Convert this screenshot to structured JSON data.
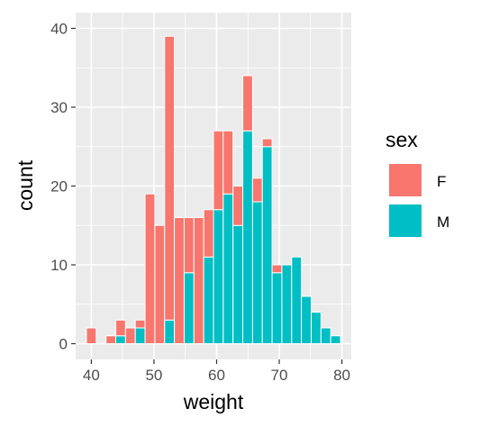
{
  "chart_data": {
    "type": "bar",
    "stacked": true,
    "xlabel": "weight",
    "ylabel": "count",
    "xlim": [
      37.5,
      81.5
    ],
    "ylim": [
      -2,
      42
    ],
    "xticks": [
      40,
      50,
      60,
      70,
      80
    ],
    "yticks": [
      0,
      10,
      20,
      30,
      40
    ],
    "bin_width": 1.56,
    "grid": true,
    "legend": {
      "title": "sex",
      "position": "right"
    },
    "x": [
      40.0,
      41.56,
      43.12,
      44.68,
      46.24,
      47.8,
      49.36,
      50.92,
      52.48,
      54.04,
      55.6,
      57.16,
      58.72,
      60.28,
      61.84,
      63.4,
      64.96,
      66.52,
      68.08,
      69.64,
      71.2,
      72.76,
      74.32,
      75.88,
      77.44,
      79.0
    ],
    "series": [
      {
        "name": "F",
        "color": "#F8766D",
        "values": [
          2,
          0,
          1,
          2,
          2,
          1,
          19,
          15,
          36,
          16,
          7,
          16,
          6,
          10,
          8,
          5,
          7,
          3,
          1,
          1,
          0,
          0,
          0,
          0,
          0,
          0
        ]
      },
      {
        "name": "M",
        "color": "#00BFC4",
        "values": [
          0,
          0,
          0,
          1,
          0,
          2,
          0,
          0,
          3,
          0,
          9,
          0,
          11,
          17,
          19,
          15,
          27,
          18,
          25,
          9,
          10,
          11,
          6,
          4,
          2,
          1
        ]
      }
    ]
  }
}
